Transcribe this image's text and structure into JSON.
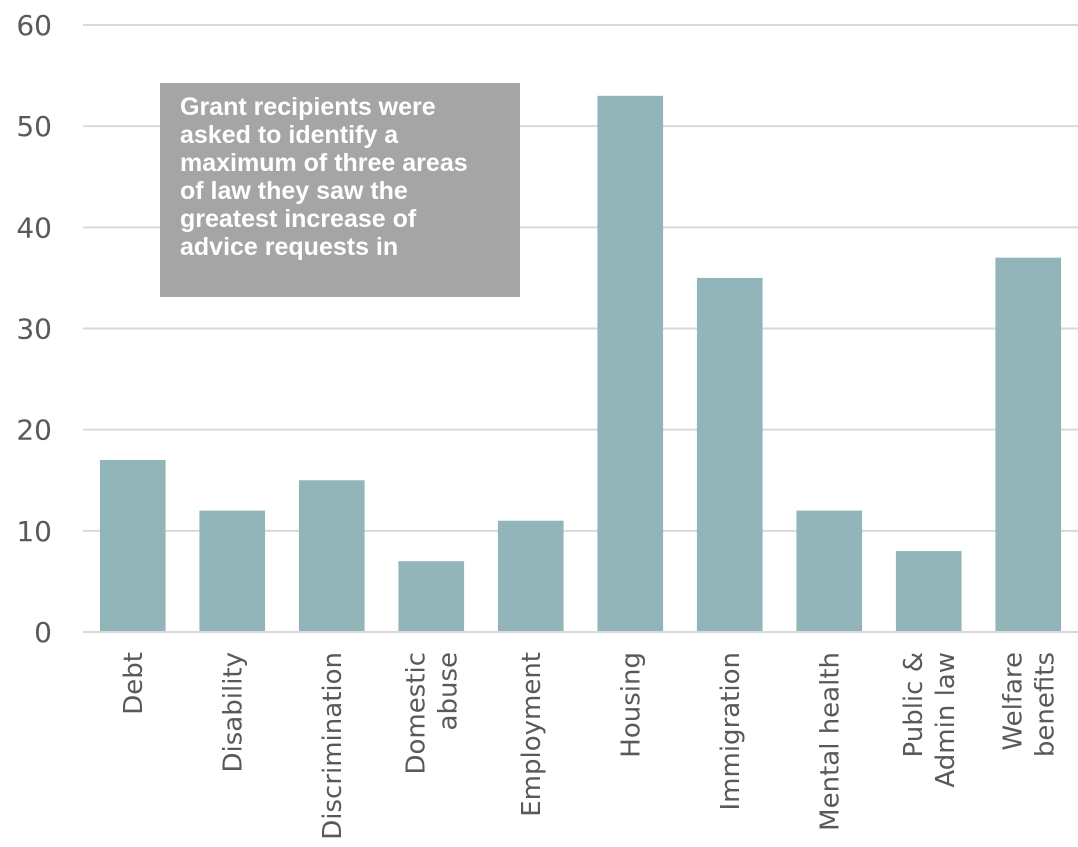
{
  "chart_data": {
    "type": "bar",
    "categories": [
      "Debt",
      "Disability",
      "Discrimination",
      "Domestic\nabuse",
      "Employment",
      "Housing",
      "Immigration",
      "Mental health",
      "Public &\nAdmin law",
      "Welfare\nbenefits"
    ],
    "values": [
      17,
      12,
      15,
      7,
      11,
      53,
      35,
      12,
      8,
      37
    ],
    "ylim": [
      0,
      60
    ],
    "yticks": [
      0,
      10,
      20,
      30,
      40,
      50,
      60
    ],
    "grid": true,
    "bar_color": "#92b5ba",
    "grid_color": "#d9d9d9",
    "annotation": "Grant recipients were\nasked to identify a\nmaximum of three areas\nof law they saw the\ngreatest increase of\nadvice requests in",
    "annotation_color": "#a5a5a5"
  }
}
